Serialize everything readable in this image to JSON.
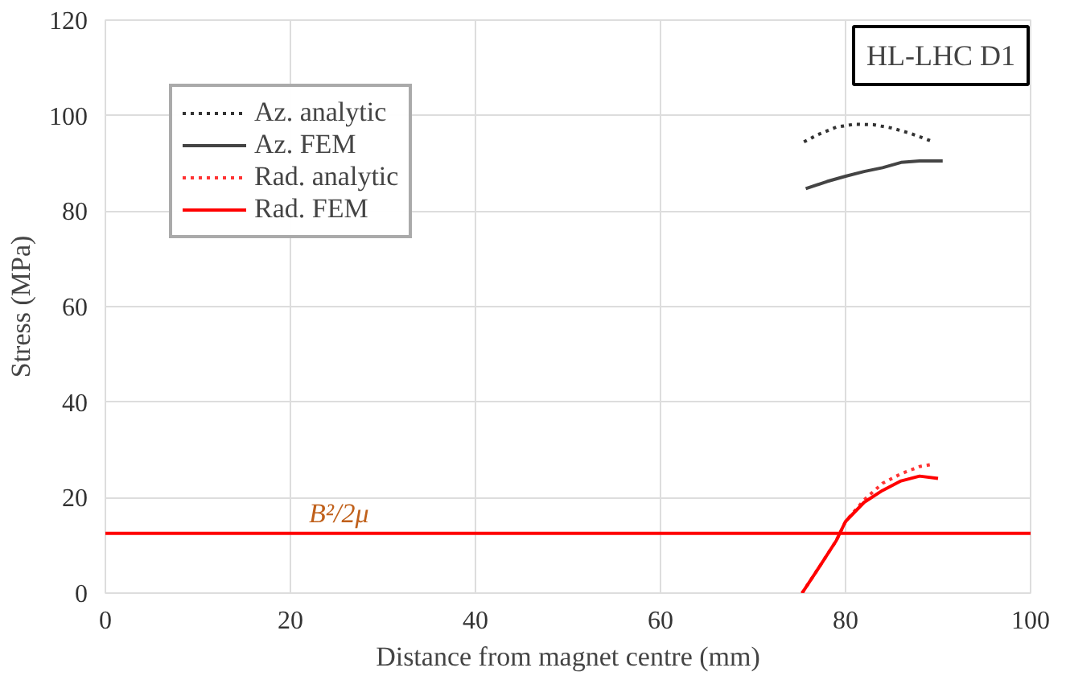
{
  "chart_data": {
    "type": "line",
    "xlabel": "Distance from magnet centre (mm)",
    "ylabel": "Stress (MPa)",
    "xlim": [
      0,
      100
    ],
    "ylim": [
      0,
      120
    ],
    "xticks": [
      0,
      20,
      40,
      60,
      80,
      100
    ],
    "yticks": [
      0,
      20,
      40,
      60,
      80,
      100,
      120
    ],
    "grid": true,
    "legend": "top left",
    "series": [
      {
        "name": "Az. analytic",
        "color": "#333333",
        "line_style": "dotted",
        "x": [
          75.5,
          77,
          79,
          81,
          83,
          85,
          87,
          89.5
        ],
        "values": [
          94.5,
          96,
          97.6,
          98.2,
          98.1,
          97.4,
          96.3,
          94.5
        ]
      },
      {
        "name": "Az. FEM",
        "color": "#444444",
        "line_style": "solid",
        "x": [
          75.7,
          78,
          80,
          82,
          84,
          86,
          88,
          90.5
        ],
        "values": [
          84.7,
          86.2,
          87.3,
          88.3,
          89.1,
          90.2,
          90.5,
          90.5
        ]
      },
      {
        "name": "Rad. analytic",
        "color": "#ff3333",
        "line_style": "dotted",
        "x": [
          75.3,
          77,
          79,
          80,
          82,
          84,
          86,
          88,
          89.5
        ],
        "values": [
          0,
          5,
          11,
          15,
          19.5,
          23,
          25,
          26.5,
          27
        ]
      },
      {
        "name": "Rad. FEM",
        "color": "#ff0000",
        "line_style": "solid",
        "x": [
          75.3,
          77,
          79,
          80,
          82,
          84,
          86,
          88,
          90
        ],
        "values": [
          0,
          5,
          11,
          15,
          19,
          21.5,
          23.5,
          24.5,
          24
        ]
      }
    ],
    "ref_lines": [
      {
        "axis": "y",
        "value": 12.5,
        "label": "B²/2μ",
        "color": "#ff0000",
        "line_style": "solid"
      }
    ],
    "annotations": [
      "HL-LHC D1"
    ]
  }
}
